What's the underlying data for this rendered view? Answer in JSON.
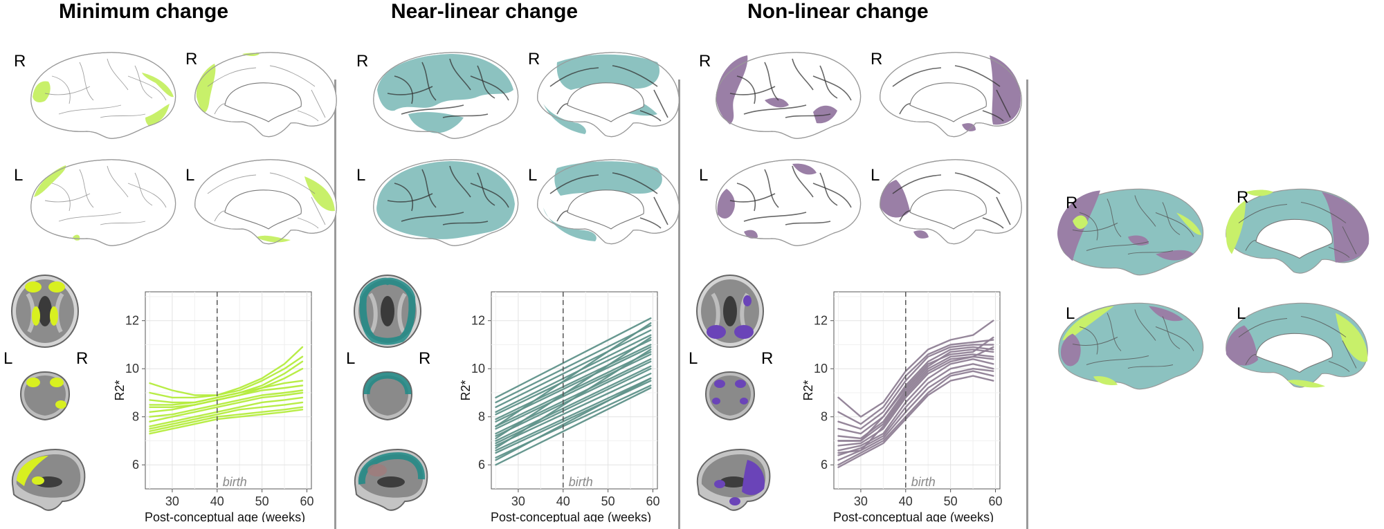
{
  "panels": [
    {
      "title": "Minimum change",
      "color": "#c8f06a",
      "line_color": "#b4ec3c",
      "mri_color": "#d8f020",
      "hemi_labels": [
        "R",
        "R",
        "L",
        "L"
      ],
      "mri_labels": {
        "left": "L",
        "right": "R"
      }
    },
    {
      "title": "Near-linear change",
      "color": "#8cc2c0",
      "line_color": "#5f928a",
      "mri_color": "#1e8a86",
      "hemi_labels": [
        "R",
        "R",
        "L",
        "L"
      ],
      "mri_labels": {
        "left": "L",
        "right": "R"
      }
    },
    {
      "title": "Non-linear change",
      "color": "#9a7fa6",
      "line_color": "#8f7f95",
      "mri_color": "#6a44b8",
      "hemi_labels": [
        "R",
        "R",
        "L",
        "L"
      ],
      "mri_labels": {
        "left": "L",
        "right": "R"
      }
    }
  ],
  "summary": {
    "hemi_labels": [
      "R",
      "R",
      "L",
      "L"
    ],
    "colors": {
      "minimum": "#c8f06a",
      "near_linear": "#8cc2c0",
      "non_linear": "#9a7fa6"
    }
  },
  "chart_data": [
    {
      "type": "line",
      "title": "Minimum change",
      "xlabel": "Post-conceptual age (weeks)",
      "ylabel": "R2*",
      "xlim": [
        24,
        61
      ],
      "ylim": [
        5,
        13.2
      ],
      "xticks": [
        30,
        40,
        50,
        60
      ],
      "yticks": [
        6,
        8,
        10,
        12
      ],
      "vline": {
        "x": 40,
        "label": "birth"
      },
      "grid": true,
      "x": [
        25,
        30,
        35,
        40,
        45,
        50,
        55,
        59
      ],
      "series": [
        {
          "values": [
            9.4,
            9.1,
            8.9,
            8.9,
            9.2,
            9.6,
            10.2,
            10.9
          ]
        },
        {
          "values": [
            9.0,
            8.8,
            8.8,
            8.9,
            9.1,
            9.5,
            10.0,
            10.5
          ]
        },
        {
          "values": [
            8.7,
            8.6,
            8.6,
            8.8,
            9.0,
            9.3,
            9.8,
            10.3
          ]
        },
        {
          "values": [
            8.4,
            8.4,
            8.5,
            8.7,
            8.9,
            9.2,
            9.6,
            10.0
          ]
        },
        {
          "values": [
            8.5,
            8.5,
            8.6,
            8.8,
            9.0,
            9.2,
            9.4,
            9.5
          ]
        },
        {
          "values": [
            8.2,
            8.3,
            8.5,
            8.7,
            8.9,
            9.1,
            9.2,
            9.3
          ]
        },
        {
          "values": [
            8.0,
            8.1,
            8.3,
            8.5,
            8.7,
            8.9,
            9.0,
            9.1
          ]
        },
        {
          "values": [
            7.8,
            8.0,
            8.2,
            8.4,
            8.6,
            8.8,
            8.9,
            9.0
          ]
        },
        {
          "values": [
            7.6,
            7.8,
            8.0,
            8.2,
            8.4,
            8.6,
            8.7,
            8.8
          ]
        },
        {
          "values": [
            7.5,
            7.7,
            7.9,
            8.1,
            8.3,
            8.4,
            8.5,
            8.6
          ]
        },
        {
          "values": [
            7.4,
            7.6,
            7.8,
            8.0,
            8.1,
            8.2,
            8.3,
            8.4
          ]
        },
        {
          "values": [
            7.3,
            7.5,
            7.7,
            7.9,
            8.0,
            8.1,
            8.2,
            8.3
          ]
        }
      ]
    },
    {
      "type": "line",
      "title": "Near-linear change",
      "xlabel": "Post-conceptual age (weeks)",
      "ylabel": "R2*",
      "xlim": [
        24,
        61
      ],
      "ylim": [
        5,
        13.2
      ],
      "xticks": [
        30,
        40,
        50,
        60
      ],
      "yticks": [
        6,
        8,
        10,
        12
      ],
      "vline": {
        "x": 40,
        "label": "birth"
      },
      "grid": true,
      "x": [
        25,
        59.5
      ],
      "series": [
        {
          "values": [
            8.8,
            12.1
          ]
        },
        {
          "values": [
            8.6,
            11.8
          ]
        },
        {
          "values": [
            8.4,
            11.6
          ]
        },
        {
          "values": [
            8.2,
            11.4
          ]
        },
        {
          "values": [
            8.1,
            11.2
          ]
        },
        {
          "values": [
            7.9,
            11.0
          ]
        },
        {
          "values": [
            7.8,
            10.9
          ]
        },
        {
          "values": [
            7.6,
            10.7
          ]
        },
        {
          "values": [
            7.5,
            10.6
          ]
        },
        {
          "values": [
            7.3,
            10.4
          ]
        },
        {
          "values": [
            7.2,
            10.3
          ]
        },
        {
          "values": [
            7.0,
            10.1
          ]
        },
        {
          "values": [
            6.9,
            10.0
          ]
        },
        {
          "values": [
            6.8,
            9.8
          ]
        },
        {
          "values": [
            6.6,
            9.6
          ]
        },
        {
          "values": [
            6.5,
            9.5
          ]
        },
        {
          "values": [
            6.3,
            9.3
          ]
        },
        {
          "values": [
            6.2,
            9.6
          ]
        },
        {
          "values": [
            6.0,
            9.2
          ]
        },
        {
          "values": [
            7.6,
            11.9
          ]
        },
        {
          "values": [
            7.1,
            11.3
          ]
        },
        {
          "values": [
            6.7,
            10.8
          ]
        }
      ]
    },
    {
      "type": "line",
      "title": "Non-linear change",
      "xlabel": "Post-conceptual age (weeks)",
      "ylabel": "R2*",
      "xlim": [
        24,
        61
      ],
      "ylim": [
        5,
        13.2
      ],
      "xticks": [
        30,
        40,
        50,
        60
      ],
      "yticks": [
        6,
        8,
        10,
        12
      ],
      "vline": {
        "x": 40,
        "label": "birth"
      },
      "grid": true,
      "x": [
        25,
        30,
        35,
        40,
        45,
        50,
        55,
        59.5
      ],
      "series": [
        {
          "values": [
            8.8,
            8.0,
            8.6,
            9.9,
            10.8,
            11.2,
            11.4,
            12.0
          ]
        },
        {
          "values": [
            8.2,
            7.7,
            8.4,
            9.7,
            10.6,
            11.0,
            11.1,
            11.2
          ]
        },
        {
          "values": [
            7.8,
            7.5,
            8.2,
            9.5,
            10.5,
            10.9,
            11.0,
            11.0
          ]
        },
        {
          "values": [
            7.5,
            7.3,
            8.0,
            9.3,
            10.3,
            10.8,
            10.9,
            10.8
          ]
        },
        {
          "values": [
            7.2,
            7.1,
            7.8,
            9.1,
            10.1,
            10.7,
            10.8,
            10.7
          ]
        },
        {
          "values": [
            7.0,
            7.0,
            7.7,
            9.0,
            10.0,
            10.5,
            10.6,
            10.5
          ]
        },
        {
          "values": [
            6.8,
            6.9,
            7.5,
            8.8,
            9.8,
            10.3,
            10.5,
            10.4
          ]
        },
        {
          "values": [
            6.6,
            6.8,
            7.3,
            8.6,
            9.6,
            10.2,
            10.4,
            10.2
          ]
        },
        {
          "values": [
            6.4,
            6.7,
            7.2,
            8.4,
            9.4,
            10.0,
            10.2,
            10.0
          ]
        },
        {
          "values": [
            6.2,
            6.6,
            7.1,
            8.2,
            9.2,
            9.8,
            10.0,
            9.9
          ]
        },
        {
          "values": [
            6.0,
            6.5,
            7.0,
            8.0,
            9.0,
            9.7,
            9.9,
            9.7
          ]
        },
        {
          "values": [
            5.9,
            6.4,
            6.9,
            7.9,
            8.9,
            9.5,
            9.7,
            9.5
          ]
        },
        {
          "values": [
            7.0,
            7.0,
            8.0,
            9.2,
            10.2,
            10.6,
            10.7,
            11.3
          ]
        },
        {
          "values": [
            6.5,
            6.6,
            7.6,
            8.9,
            9.9,
            10.4,
            10.5,
            10.9
          ]
        }
      ]
    }
  ]
}
